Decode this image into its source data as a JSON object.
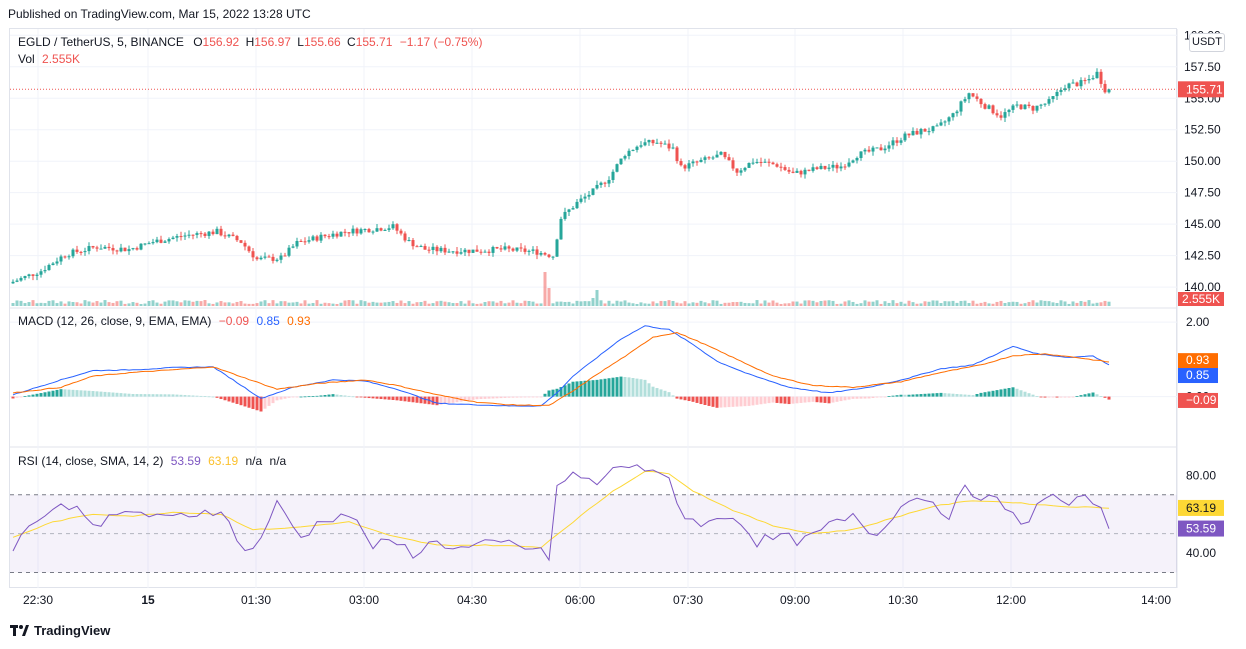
{
  "header": {
    "published": "Published on TradingView.com, Mar 15, 2022 13:28 UTC"
  },
  "price_legend": {
    "symbol": "EGLD / TetherUS, 5, BINANCE",
    "o_label": "O",
    "o_value": "156.92",
    "h_label": "H",
    "h_value": "156.97",
    "l_label": "L",
    "l_value": "155.66",
    "c_label": "C",
    "c_value": "155.71",
    "change": "−1.17 (−0.75%)",
    "vol_label": "Vol",
    "vol_value": "2.555K"
  },
  "macd_legend": {
    "title": "MACD (12, 26, close, 9, EMA, EMA)",
    "hist": "−0.09",
    "macd": "0.85",
    "signal": "0.93"
  },
  "rsi_legend": {
    "title": "RSI (14, close, SMA, 14, 2)",
    "rsi": "53.59",
    "sma": "63.19",
    "na1": "n/a",
    "na2": "n/a"
  },
  "currency": "USDT",
  "footer": {
    "brand": "TradingView"
  },
  "colors": {
    "up": "#26a69a",
    "down": "#ef5350",
    "macd": "#2962ff",
    "signal": "#ff6d00",
    "rsi": "#7e57c2",
    "rsi_sma": "#fdd835"
  },
  "chart_data": [
    {
      "type": "candlestick",
      "title": "EGLD / TetherUS, 5, BINANCE",
      "time_labels": [
        "22:30",
        "15",
        "01:30",
        "03:00",
        "04:30",
        "06:00",
        "07:30",
        "09:00",
        "10:30",
        "12:00",
        "14:00"
      ],
      "price_ticks": [
        "160.00",
        "157.50",
        "155.00",
        "152.50",
        "150.00",
        "147.50",
        "145.00",
        "142.50",
        "140.00"
      ],
      "ylim": [
        138.5,
        160.5
      ],
      "last_price": "155.71",
      "last_volume": "2.555K",
      "close_path": [
        [
          0,
          140.3
        ],
        [
          8,
          141.3
        ],
        [
          14,
          142.6
        ],
        [
          22,
          143.2
        ],
        [
          30,
          143.0
        ],
        [
          36,
          143.6
        ],
        [
          44,
          144.1
        ],
        [
          52,
          144.4
        ],
        [
          58,
          143.6
        ],
        [
          62,
          142.2
        ],
        [
          68,
          142.3
        ],
        [
          72,
          143.5
        ],
        [
          78,
          144.0
        ],
        [
          84,
          144.4
        ],
        [
          90,
          144.6
        ],
        [
          96,
          144.8
        ],
        [
          100,
          143.6
        ],
        [
          104,
          143.0
        ],
        [
          110,
          142.9
        ],
        [
          116,
          142.9
        ],
        [
          124,
          143.0
        ],
        [
          132,
          142.8
        ],
        [
          136,
          142.5
        ],
        [
          138,
          145.5
        ],
        [
          142,
          146.7
        ],
        [
          146,
          147.6
        ],
        [
          150,
          148.7
        ],
        [
          154,
          150.6
        ],
        [
          158,
          151.4
        ],
        [
          162,
          151.5
        ],
        [
          166,
          151.0
        ],
        [
          168,
          149.5
        ],
        [
          174,
          150.1
        ],
        [
          178,
          150.5
        ],
        [
          182,
          149.2
        ],
        [
          186,
          150.0
        ],
        [
          192,
          149.7
        ],
        [
          196,
          149.0
        ],
        [
          202,
          149.4
        ],
        [
          208,
          149.6
        ],
        [
          212,
          150.5
        ],
        [
          218,
          151.0
        ],
        [
          224,
          152.0
        ],
        [
          228,
          152.4
        ],
        [
          232,
          152.6
        ],
        [
          236,
          153.7
        ],
        [
          240,
          155.4
        ],
        [
          244,
          154.4
        ],
        [
          248,
          153.6
        ],
        [
          252,
          154.4
        ],
        [
          256,
          154.2
        ],
        [
          260,
          154.7
        ],
        [
          264,
          156.0
        ],
        [
          268,
          156.2
        ],
        [
          270,
          156.5
        ],
        [
          272,
          157.0
        ],
        [
          274,
          155.71
        ]
      ],
      "volume_notes": "low volume overall with a spike near 05:30 and smaller spike near 06:20"
    },
    {
      "type": "line",
      "title": "MACD (12, 26, close, 9, EMA, EMA)",
      "price_ticks": [
        "2.00",
        "0.00"
      ],
      "ylim": [
        -1.3,
        2.3
      ],
      "series": [
        {
          "name": "MACD",
          "values": [
            [
              0,
              0.05
            ],
            [
              12,
              0.45
            ],
            [
              20,
              0.7
            ],
            [
              30,
              0.72
            ],
            [
              40,
              0.78
            ],
            [
              50,
              0.8
            ],
            [
              55,
              0.45
            ],
            [
              62,
              -0.05
            ],
            [
              70,
              0.25
            ],
            [
              80,
              0.45
            ],
            [
              88,
              0.42
            ],
            [
              96,
              0.2
            ],
            [
              106,
              -0.18
            ],
            [
              116,
              -0.22
            ],
            [
              124,
              -0.25
            ],
            [
              132,
              -0.25
            ],
            [
              136,
              0.1
            ],
            [
              140,
              0.55
            ],
            [
              146,
              1.05
            ],
            [
              152,
              1.55
            ],
            [
              158,
              1.9
            ],
            [
              164,
              1.8
            ],
            [
              170,
              1.4
            ],
            [
              176,
              0.95
            ],
            [
              184,
              0.6
            ],
            [
              194,
              0.25
            ],
            [
              204,
              0.1
            ],
            [
              214,
              0.25
            ],
            [
              224,
              0.5
            ],
            [
              232,
              0.75
            ],
            [
              240,
              0.85
            ],
            [
              250,
              1.35
            ],
            [
              256,
              1.15
            ],
            [
              264,
              1.05
            ],
            [
              270,
              1.1
            ],
            [
              274,
              0.85
            ]
          ]
        },
        {
          "name": "Signal",
          "values": [
            [
              0,
              0.1
            ],
            [
              12,
              0.25
            ],
            [
              20,
              0.55
            ],
            [
              30,
              0.65
            ],
            [
              40,
              0.72
            ],
            [
              50,
              0.8
            ],
            [
              58,
              0.5
            ],
            [
              66,
              0.2
            ],
            [
              76,
              0.35
            ],
            [
              88,
              0.45
            ],
            [
              96,
              0.3
            ],
            [
              106,
              0.05
            ],
            [
              116,
              -0.15
            ],
            [
              124,
              -0.22
            ],
            [
              134,
              -0.24
            ],
            [
              140,
              0.15
            ],
            [
              146,
              0.6
            ],
            [
              154,
              1.15
            ],
            [
              160,
              1.6
            ],
            [
              166,
              1.72
            ],
            [
              172,
              1.45
            ],
            [
              180,
              1.05
            ],
            [
              190,
              0.55
            ],
            [
              200,
              0.3
            ],
            [
              210,
              0.25
            ],
            [
              222,
              0.4
            ],
            [
              232,
              0.65
            ],
            [
              242,
              0.85
            ],
            [
              250,
              1.1
            ],
            [
              258,
              1.15
            ],
            [
              266,
              1.05
            ],
            [
              274,
              0.93
            ]
          ]
        }
      ],
      "histogram_range": [
        -0.55,
        0.6
      ]
    },
    {
      "type": "line",
      "title": "RSI (14, close, SMA, 14, 2)",
      "price_ticks": [
        "80.00",
        "40.00"
      ],
      "band": [
        70,
        30
      ],
      "midline": 50,
      "ylim": [
        22,
        93
      ],
      "series": [
        {
          "name": "RSI",
          "values": [
            [
              0,
              44
            ],
            [
              6,
              58
            ],
            [
              14,
              65
            ],
            [
              22,
              55
            ],
            [
              30,
              62
            ],
            [
              38,
              57
            ],
            [
              44,
              60
            ],
            [
              52,
              63
            ],
            [
              56,
              46
            ],
            [
              60,
              41
            ],
            [
              66,
              65
            ],
            [
              72,
              48
            ],
            [
              78,
              58
            ],
            [
              84,
              60
            ],
            [
              90,
              44
            ],
            [
              96,
              45
            ],
            [
              100,
              40
            ],
            [
              106,
              46
            ],
            [
              112,
              42
            ],
            [
              118,
              44
            ],
            [
              124,
              45
            ],
            [
              130,
              42
            ],
            [
              134,
              38
            ],
            [
              136,
              74
            ],
            [
              140,
              80
            ],
            [
              146,
              76
            ],
            [
              152,
              85
            ],
            [
              156,
              86
            ],
            [
              160,
              80
            ],
            [
              164,
              78
            ],
            [
              168,
              58
            ],
            [
              174,
              55
            ],
            [
              180,
              60
            ],
            [
              186,
              46
            ],
            [
              192,
              48
            ],
            [
              198,
              46
            ],
            [
              204,
              54
            ],
            [
              210,
              58
            ],
            [
              216,
              49
            ],
            [
              222,
              66
            ],
            [
              228,
              69
            ],
            [
              234,
              60
            ],
            [
              238,
              72
            ],
            [
              242,
              70
            ],
            [
              248,
              64
            ],
            [
              252,
              53
            ],
            [
              258,
              70
            ],
            [
              264,
              65
            ],
            [
              270,
              68
            ],
            [
              274,
              53.59
            ]
          ]
        },
        {
          "name": "SMA",
          "values": [
            [
              0,
              48
            ],
            [
              10,
              56
            ],
            [
              20,
              60
            ],
            [
              30,
              59
            ],
            [
              40,
              61
            ],
            [
              52,
              60
            ],
            [
              60,
              52
            ],
            [
              70,
              53
            ],
            [
              84,
              56
            ],
            [
              94,
              49
            ],
            [
              106,
              44
            ],
            [
              120,
              44
            ],
            [
              132,
              43
            ],
            [
              140,
              56
            ],
            [
              150,
              72
            ],
            [
              158,
              82
            ],
            [
              164,
              81
            ],
            [
              170,
              72
            ],
            [
              180,
              62
            ],
            [
              190,
              54
            ],
            [
              200,
              50
            ],
            [
              210,
              52
            ],
            [
              220,
              58
            ],
            [
              230,
              64
            ],
            [
              240,
              67
            ],
            [
              250,
              66
            ],
            [
              262,
              64
            ],
            [
              274,
              63.19
            ]
          ]
        }
      ]
    }
  ]
}
